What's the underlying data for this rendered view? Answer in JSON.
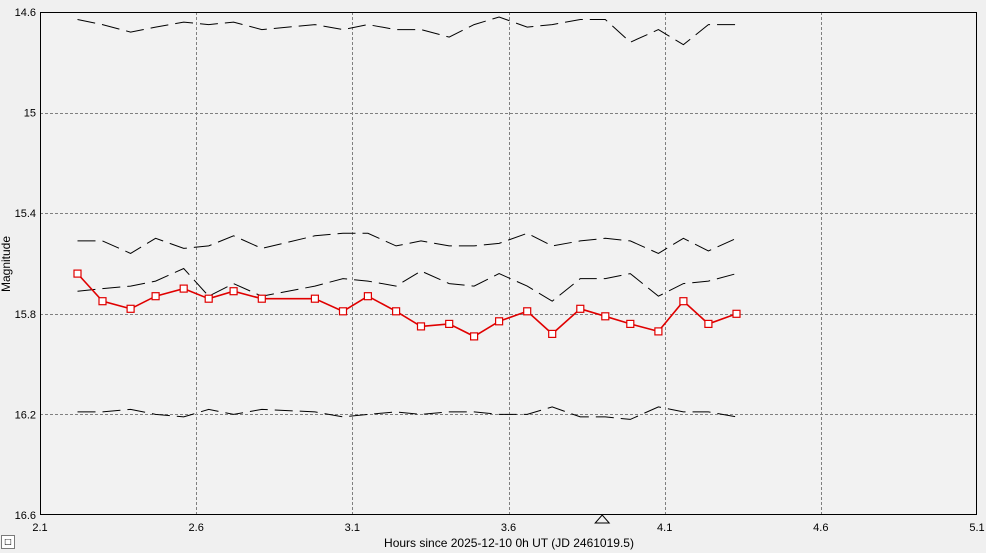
{
  "chart_data": {
    "type": "line",
    "xlabel": "Hours since 2025-12-10 0h UT (JD 2461019.5)",
    "ylabel": "Magnitude",
    "xlim": [
      2.1,
      5.1
    ],
    "ylim": [
      14.6,
      16.6
    ],
    "y_inverted": true,
    "x_ticks": [
      "2.1",
      "2.6",
      "3.1",
      "3.6",
      "4.1",
      "4.6",
      "5.1"
    ],
    "y_ticks": [
      "14.6",
      "15",
      "15.4",
      "15.8",
      "16.2",
      "16.6"
    ],
    "grid": true,
    "x_marker": 3.9,
    "x": [
      2.22,
      2.3,
      2.39,
      2.47,
      2.56,
      2.64,
      2.72,
      2.81,
      2.98,
      3.07,
      3.15,
      3.24,
      3.32,
      3.41,
      3.49,
      3.57,
      3.66,
      3.74,
      3.83,
      3.91,
      3.99,
      4.08,
      4.16,
      4.24,
      4.33
    ],
    "series": [
      {
        "values": [
          14.63,
          14.65,
          14.68,
          14.66,
          14.64,
          14.65,
          14.64,
          14.67,
          14.65,
          14.67,
          14.65,
          14.67,
          14.67,
          14.7,
          14.65,
          14.62,
          14.66,
          14.65,
          14.63,
          14.63,
          14.72,
          14.67,
          14.73,
          14.65,
          14.65
        ],
        "style": "comparison"
      },
      {
        "values": [
          15.51,
          15.51,
          15.56,
          15.5,
          15.54,
          15.53,
          15.49,
          15.54,
          15.49,
          15.48,
          15.48,
          15.53,
          15.51,
          15.53,
          15.53,
          15.52,
          15.48,
          15.53,
          15.51,
          15.5,
          15.51,
          15.56,
          15.5,
          15.55,
          15.5
        ],
        "style": "comparison"
      },
      {
        "values": [
          15.71,
          15.7,
          15.69,
          15.67,
          15.62,
          15.73,
          15.68,
          15.73,
          15.69,
          15.66,
          15.67,
          15.69,
          15.63,
          15.68,
          15.69,
          15.64,
          15.69,
          15.75,
          15.66,
          15.66,
          15.64,
          15.73,
          15.68,
          15.67,
          15.64
        ],
        "style": "comparison"
      },
      {
        "values": [
          15.64,
          15.75,
          15.78,
          15.73,
          15.7,
          15.74,
          15.71,
          15.74,
          15.74,
          15.79,
          15.73,
          15.79,
          15.85,
          15.84,
          15.89,
          15.83,
          15.79,
          15.88,
          15.78,
          15.81,
          15.84,
          15.87,
          15.75,
          15.84,
          15.8
        ],
        "style": "target"
      },
      {
        "values": [
          16.19,
          16.19,
          16.18,
          16.2,
          16.21,
          16.18,
          16.2,
          16.18,
          16.19,
          16.21,
          16.2,
          16.19,
          16.2,
          16.19,
          16.19,
          16.2,
          16.2,
          16.17,
          16.21,
          16.21,
          16.22,
          16.17,
          16.19,
          16.19,
          16.21
        ],
        "style": "comparison"
      }
    ]
  },
  "ui": {
    "corner_button_icon": "square-icon",
    "corner_button_glyph": "□"
  }
}
